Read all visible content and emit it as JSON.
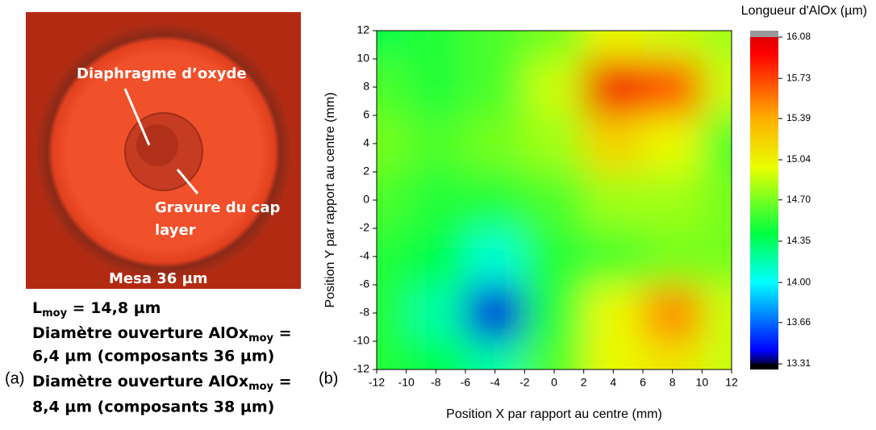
{
  "micrograph": {
    "label_diaphragm": "Diaphragme d’oxyde",
    "label_etch_1": "Gravure du cap",
    "label_etch_2": "layer",
    "label_mesa": "Mesa 36 µm"
  },
  "caption": {
    "panel_a": "(a)",
    "l_main": "L",
    "l_sub": "moy",
    "l_rest": " = 14,8 µm",
    "d1_main": "Diamètre ouverture AlOx",
    "d1_sub": "moy",
    "d1_rest": " =",
    "d1_line2": "6,4 µm (composants 36 µm)",
    "d2_main": "Diamètre ouverture AlOx",
    "d2_sub": "moy",
    "d2_rest": " =",
    "d2_line2": "8,4 µm (composants 38 µm)"
  },
  "chart_data": {
    "type": "contour",
    "panel_label": "(b)",
    "x_label": "Position X par rapport au centre (mm)",
    "y_label": "Position Y par rapport au centre (mm)",
    "colorbar_title": "Longueur d'AlOx (µm)",
    "xlim": [
      -12,
      12
    ],
    "ylim": [
      -12,
      12
    ],
    "xticks": [
      -12,
      -10,
      -8,
      -6,
      -4,
      -2,
      0,
      2,
      4,
      6,
      8,
      10,
      12
    ],
    "yticks": [
      -12,
      -10,
      -8,
      -6,
      -4,
      -2,
      0,
      2,
      4,
      6,
      8,
      10,
      12
    ],
    "x": [
      -12,
      -8,
      -4,
      0,
      4,
      8,
      12
    ],
    "y": [
      12,
      8,
      4,
      0,
      -4,
      -8,
      -12
    ],
    "z": [
      [
        14.4,
        14.5,
        14.6,
        14.7,
        15.0,
        14.9,
        14.8
      ],
      [
        14.6,
        14.5,
        14.6,
        14.9,
        16.0,
        15.7,
        14.9
      ],
      [
        14.7,
        14.6,
        14.7,
        14.8,
        15.2,
        15.0,
        14.6
      ],
      [
        14.6,
        14.5,
        14.5,
        14.6,
        14.8,
        14.8,
        14.7
      ],
      [
        14.5,
        14.4,
        14.1,
        14.5,
        14.6,
        14.7,
        14.7
      ],
      [
        14.5,
        14.2,
        13.4,
        14.5,
        15.0,
        15.5,
        14.9
      ],
      [
        14.5,
        14.4,
        14.2,
        14.6,
        15.0,
        15.1,
        14.9
      ]
    ],
    "zlim": [
      13.31,
      16.08
    ],
    "zticks": [
      13.31,
      13.66,
      {
        "value": 14,
        "label": "14.00"
      },
      14.35,
      {
        "value": 14.7,
        "label": "14.70"
      },
      15.04,
      15.39,
      15.73,
      16.08
    ]
  }
}
